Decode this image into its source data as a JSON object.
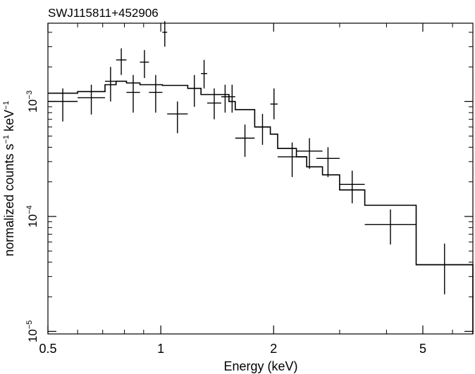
{
  "chart_data": {
    "type": "scatter",
    "title": "SWJ115811+452906",
    "xlabel": "Energy (keV)",
    "ylabel_main": "normalized counts s",
    "ylabel_exp1": "−1",
    "ylabel_mid": " keV",
    "ylabel_exp2": "−1",
    "xscale": "log",
    "yscale": "log",
    "xlim": [
      0.5,
      6.8
    ],
    "ylim": [
      9.5e-06,
      0.0048
    ],
    "x_major_ticks": [
      {
        "value": 0.5,
        "label": "0.5"
      },
      {
        "value": 1,
        "label": "1"
      },
      {
        "value": 2,
        "label": "2"
      },
      {
        "value": 5,
        "label": "5"
      }
    ],
    "y_major_ticks": [
      {
        "value": 1e-05,
        "base": "10",
        "exp": "−5"
      },
      {
        "value": 0.0001,
        "base": "10",
        "exp": "−4"
      },
      {
        "value": 0.001,
        "base": "10",
        "exp": "−3"
      }
    ],
    "data_points": [
      {
        "xlo": 0.5,
        "xhi": 0.6,
        "y": 0.001,
        "ylo": 0.00067,
        "yhi": 0.0013
      },
      {
        "xlo": 0.6,
        "xhi": 0.71,
        "y": 0.00108,
        "ylo": 0.00077,
        "yhi": 0.0014
      },
      {
        "xlo": 0.71,
        "xhi": 0.76,
        "y": 0.0015,
        "ylo": 0.001,
        "yhi": 0.002
      },
      {
        "xlo": 0.76,
        "xhi": 0.81,
        "y": 0.0023,
        "ylo": 0.0017,
        "yhi": 0.0029
      },
      {
        "xlo": 0.81,
        "xhi": 0.88,
        "y": 0.0012,
        "ylo": 0.0008,
        "yhi": 0.0017
      },
      {
        "xlo": 0.88,
        "xhi": 0.93,
        "y": 0.0022,
        "ylo": 0.0016,
        "yhi": 0.0028
      },
      {
        "xlo": 0.93,
        "xhi": 1.01,
        "y": 0.0012,
        "ylo": 0.0008,
        "yhi": 0.0017
      },
      {
        "xlo": 1.01,
        "xhi": 1.04,
        "y": 0.004,
        "ylo": 0.003,
        "yhi": 0.005
      },
      {
        "xlo": 1.04,
        "xhi": 1.18,
        "y": 0.00078,
        "ylo": 0.00053,
        "yhi": 0.001
      },
      {
        "xlo": 1.18,
        "xhi": 1.28,
        "y": 0.0013,
        "ylo": 0.0009,
        "yhi": 0.0017
      },
      {
        "xlo": 1.28,
        "xhi": 1.33,
        "y": 0.00175,
        "ylo": 0.0013,
        "yhi": 0.0023
      },
      {
        "xlo": 1.33,
        "xhi": 1.45,
        "y": 0.00097,
        "ylo": 0.0007,
        "yhi": 0.0013
      },
      {
        "xlo": 1.45,
        "xhi": 1.52,
        "y": 0.0011,
        "ylo": 0.0008,
        "yhi": 0.0014
      },
      {
        "xlo": 1.52,
        "xhi": 1.58,
        "y": 0.0011,
        "ylo": 0.0008,
        "yhi": 0.0014
      },
      {
        "xlo": 1.58,
        "xhi": 1.78,
        "y": 0.00048,
        "ylo": 0.00033,
        "yhi": 0.00063
      },
      {
        "xlo": 1.78,
        "xhi": 1.96,
        "y": 0.0006,
        "ylo": 0.00042,
        "yhi": 0.00078
      },
      {
        "xlo": 1.96,
        "xhi": 2.05,
        "y": 0.00095,
        "ylo": 0.0007,
        "yhi": 0.0013
      },
      {
        "xlo": 2.05,
        "xhi": 2.45,
        "y": 0.00033,
        "ylo": 0.00022,
        "yhi": 0.00044
      },
      {
        "xlo": 2.3,
        "xhi": 2.7,
        "y": 0.00037,
        "ylo": 0.00026,
        "yhi": 0.00048
      },
      {
        "xlo": 2.6,
        "xhi": 3.0,
        "y": 0.00032,
        "ylo": 0.00022,
        "yhi": 0.0004
      },
      {
        "xlo": 3.0,
        "xhi": 3.5,
        "y": 0.00019,
        "ylo": 0.00013,
        "yhi": 0.00025
      },
      {
        "xlo": 3.5,
        "xhi": 4.8,
        "y": 8.5e-05,
        "ylo": 5.7e-05,
        "yhi": 0.000115
      },
      {
        "xlo": 4.8,
        "xhi": 6.8,
        "y": 3.8e-05,
        "ylo": 2.1e-05,
        "yhi": 5.8e-05
      }
    ],
    "model": [
      {
        "xlo": 0.5,
        "xhi": 0.6,
        "y": 0.00118
      },
      {
        "xlo": 0.6,
        "xhi": 0.71,
        "y": 0.00122
      },
      {
        "xlo": 0.71,
        "xhi": 0.76,
        "y": 0.0014
      },
      {
        "xlo": 0.76,
        "xhi": 0.81,
        "y": 0.0015
      },
      {
        "xlo": 0.81,
        "xhi": 0.88,
        "y": 0.00145
      },
      {
        "xlo": 0.88,
        "xhi": 0.93,
        "y": 0.0014
      },
      {
        "xlo": 0.93,
        "xhi": 1.01,
        "y": 0.0014
      },
      {
        "xlo": 1.01,
        "xhi": 1.18,
        "y": 0.00138
      },
      {
        "xlo": 1.18,
        "xhi": 1.28,
        "y": 0.0013
      },
      {
        "xlo": 1.28,
        "xhi": 1.52,
        "y": 0.00115
      },
      {
        "xlo": 1.52,
        "xhi": 1.58,
        "y": 0.001
      },
      {
        "xlo": 1.58,
        "xhi": 1.78,
        "y": 0.00085
      },
      {
        "xlo": 1.78,
        "xhi": 1.96,
        "y": 0.0006
      },
      {
        "xlo": 1.96,
        "xhi": 2.05,
        "y": 0.00052
      },
      {
        "xlo": 2.05,
        "xhi": 2.3,
        "y": 0.00039
      },
      {
        "xlo": 2.3,
        "xhi": 2.45,
        "y": 0.00033
      },
      {
        "xlo": 2.45,
        "xhi": 2.7,
        "y": 0.00027
      },
      {
        "xlo": 2.7,
        "xhi": 3.0,
        "y": 0.00023
      },
      {
        "xlo": 3.0,
        "xhi": 3.5,
        "y": 0.00017
      },
      {
        "xlo": 3.5,
        "xhi": 4.8,
        "y": 0.000125
      },
      {
        "xlo": 4.8,
        "xhi": 6.8,
        "y": 3.8e-05
      }
    ]
  }
}
